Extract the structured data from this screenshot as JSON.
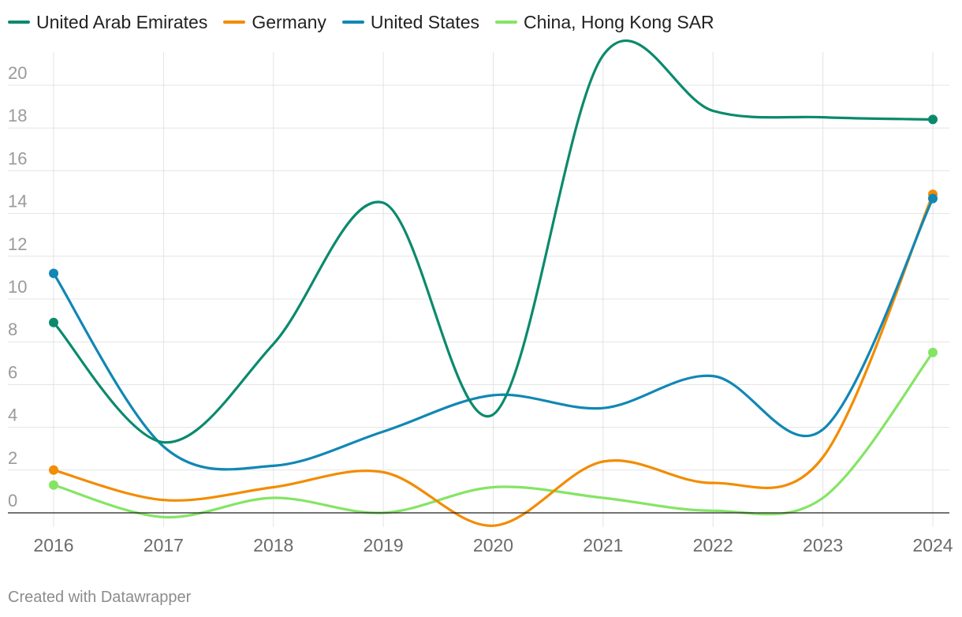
{
  "chart_data": {
    "type": "line",
    "x": [
      2016,
      2017,
      2018,
      2019,
      2020,
      2021,
      2022,
      2023,
      2024
    ],
    "xticks": [
      "2016",
      "2017",
      "2018",
      "2019",
      "2020",
      "2021",
      "2022",
      "2023",
      "2024"
    ],
    "yticks": [
      "0",
      "2",
      "4",
      "6",
      "8",
      "10",
      "12",
      "14",
      "16",
      "18",
      "20"
    ],
    "ylim": [
      -0.8,
      21.5
    ],
    "series": [
      {
        "name": "United Arab Emirates",
        "color": "#0a8a6c",
        "values": [
          8.9,
          3.3,
          7.9,
          14.5,
          4.6,
          21.4,
          18.8,
          18.5,
          18.4
        ]
      },
      {
        "name": "Germany",
        "color": "#f28c00",
        "values": [
          2.0,
          0.6,
          1.2,
          1.9,
          -0.6,
          2.4,
          1.4,
          2.6,
          14.9
        ]
      },
      {
        "name": "United States",
        "color": "#1187b5",
        "values": [
          11.2,
          3.1,
          2.2,
          3.8,
          5.5,
          4.9,
          6.4,
          3.9,
          14.7
        ]
      },
      {
        "name": "China, Hong Kong SAR",
        "color": "#84e564",
        "values": [
          1.3,
          -0.2,
          0.7,
          0.0,
          1.2,
          0.7,
          0.1,
          0.7,
          7.5
        ]
      }
    ]
  },
  "footer": "Created with Datawrapper"
}
